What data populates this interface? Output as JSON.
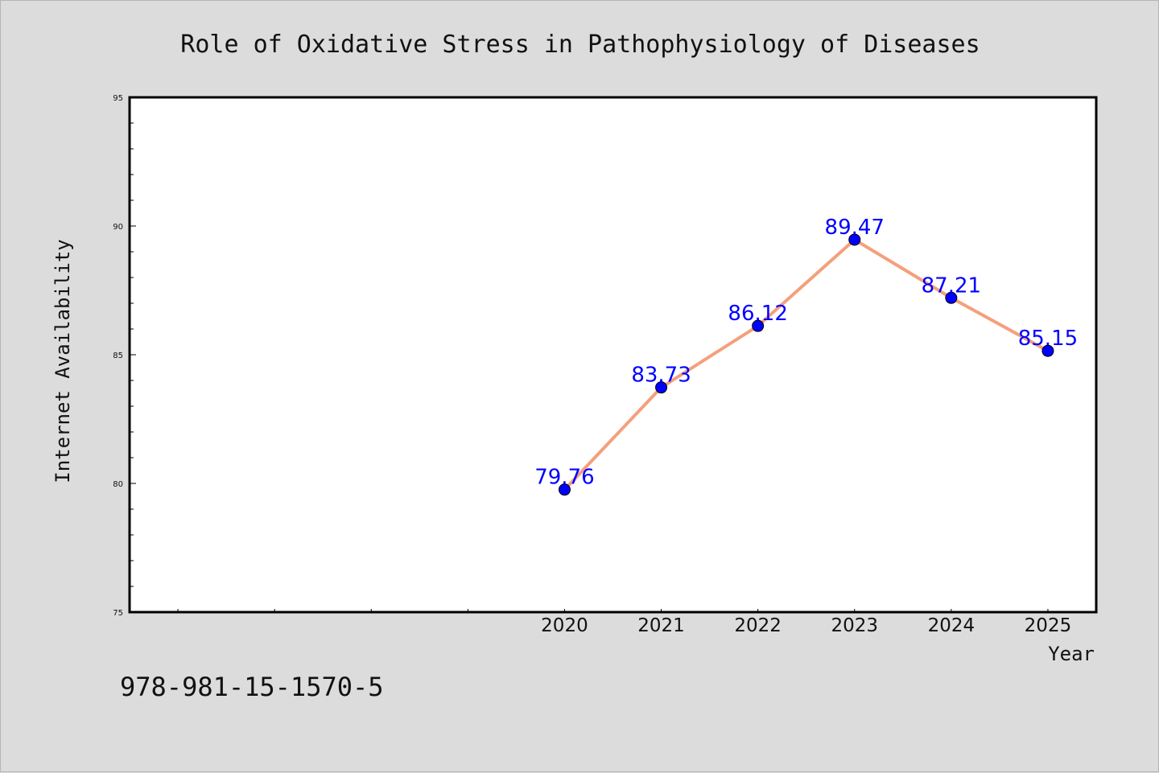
{
  "chart_data": {
    "type": "line",
    "title": "Role of Oxidative Stress in Pathophysiology of Diseases",
    "xlabel": "Year",
    "ylabel": "Internet Availability",
    "x": [
      2020,
      2021,
      2022,
      2023,
      2024,
      2025
    ],
    "x_tick_labels": [
      "2020",
      "2021",
      "2022",
      "2023",
      "2024",
      "2025"
    ],
    "xlim": [
      2015.5,
      2025.5
    ],
    "ylim": [
      75,
      95
    ],
    "y_ticks": [
      75,
      80,
      85,
      90,
      95
    ],
    "y_tick_labels": [
      "75",
      "80",
      "85",
      "90",
      "95"
    ],
    "series": [
      {
        "values": [
          79.76,
          83.73,
          86.12,
          89.47,
          87.21,
          85.15
        ],
        "labels": [
          "79.76",
          "83.73",
          "86.12",
          "89.47",
          "87.21",
          "85.15"
        ],
        "line_color": "#f4a07c",
        "marker_color": "#0000ff"
      }
    ],
    "grid": false,
    "legend": "none"
  },
  "footer_text": "978-981-15-1570-5",
  "colors": {
    "background": "#dcdcdc",
    "plot_background": "#ffffff",
    "label_color": "#0000ff"
  }
}
